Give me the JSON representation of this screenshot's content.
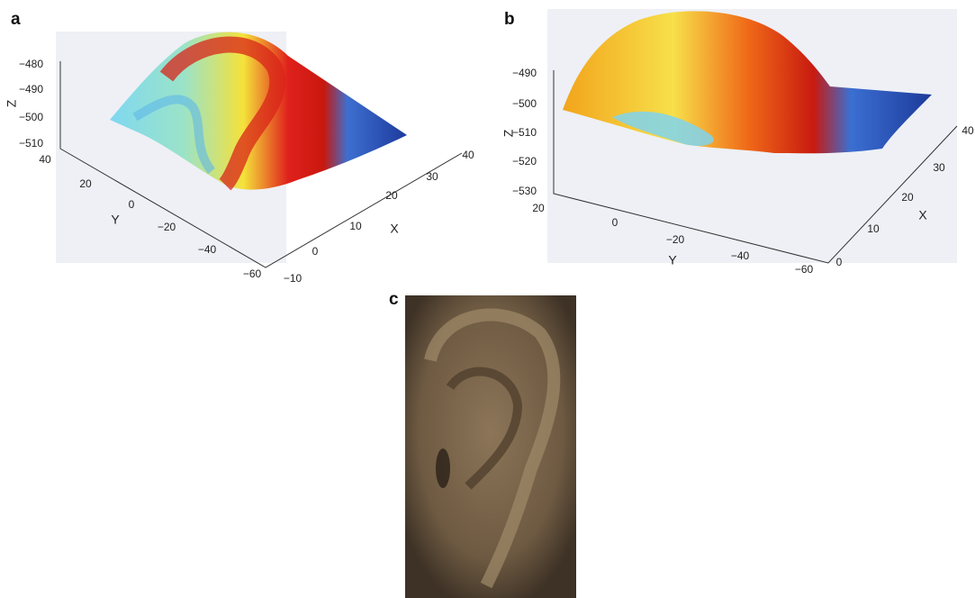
{
  "panels": [
    {
      "label": "a",
      "z_axis": {
        "label": "Z",
        "ticks": [
          "−480",
          "−490",
          "−500",
          "−510"
        ]
      },
      "y_axis": {
        "label": "Y",
        "ticks": [
          "40",
          "20",
          "0",
          "−20",
          "−40",
          "−60"
        ]
      },
      "x_axis": {
        "label": "X",
        "ticks": [
          "−10",
          "0",
          "10",
          "20",
          "30",
          "40"
        ]
      }
    },
    {
      "label": "b",
      "z_axis": {
        "label": "Z",
        "ticks": [
          "−490",
          "−500",
          "−510",
          "−520",
          "−530"
        ]
      },
      "y_axis": {
        "label": "Y",
        "ticks": [
          "20",
          "0",
          "−20",
          "−40",
          "−60"
        ]
      },
      "x_axis": {
        "label": "X",
        "ticks": [
          "0",
          "10",
          "20",
          "30",
          "40"
        ]
      }
    },
    {
      "label": "c"
    }
  ]
}
